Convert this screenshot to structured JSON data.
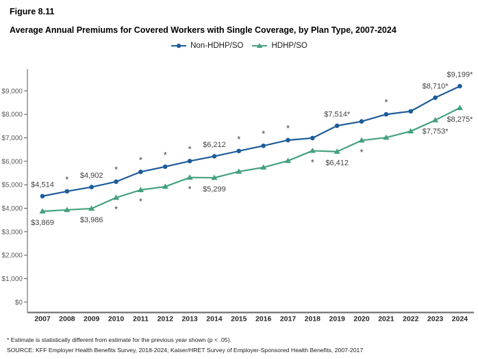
{
  "figure": {
    "number": "Figure 8.11",
    "title": "Average Annual Premiums for Covered Workers with Single Coverage, by Plan Type, 2007-2024"
  },
  "footnotes": {
    "asterisk_note": "* Estimate is statistically different from estimate for the previous year shown (p < .05).",
    "source": "SOURCE: KFF Employer Health Benefits Survey, 2018-2024; Kaiser/HRET Survey of Employer-Sponsored Health Benefits, 2007-2017"
  },
  "colors": {
    "non_hdhp": "#1d5c99",
    "hdhp": "#44a17d",
    "label_text": "#404040",
    "x_axis_line": "#7f7f7f",
    "y_axis_line": "#595959"
  },
  "chart_data": {
    "type": "line",
    "title": "Average Annual Premiums for Covered Workers with Single Coverage, by Plan Type, 2007-2024",
    "xlabel": "",
    "ylabel": "",
    "ylim": [
      0,
      9000
    ],
    "ytick_step": 1000,
    "grid": false,
    "legend_position": "top",
    "categories": [
      "2007",
      "2008",
      "2009",
      "2010",
      "2011",
      "2012",
      "2013",
      "2014",
      "2015",
      "2016",
      "2017",
      "2018",
      "2019",
      "2020",
      "2021",
      "2022",
      "2023",
      "2024"
    ],
    "yticks": [
      "$0",
      "$1,000",
      "$2,000",
      "$3,000",
      "$4,000",
      "$5,000",
      "$6,000",
      "$7,000",
      "$8,000",
      "$9,000"
    ],
    "series": [
      {
        "name": "Non-HDHP/SO",
        "color": "#1d5c99",
        "marker": "circle",
        "label_side": "above",
        "values": [
          4514,
          4720,
          4902,
          5130,
          5550,
          5770,
          6010,
          6212,
          6440,
          6660,
          6900,
          6990,
          7514,
          7700,
          8000,
          8130,
          8710,
          9199
        ],
        "point_labels": {
          "2007": "$4,514",
          "2009": "$4,902",
          "2014": "$6,212",
          "2019": "$7,514*",
          "2023": "$8,710*",
          "2024": "$9,199*"
        },
        "sig_years": [
          "2008",
          "2010",
          "2011",
          "2012",
          "2013",
          "2015",
          "2016",
          "2017",
          "2021"
        ]
      },
      {
        "name": "HDHP/SO",
        "color": "#44a17d",
        "marker": "triangle",
        "label_side": "below",
        "values": [
          3869,
          3930,
          3986,
          4450,
          4780,
          4920,
          5310,
          5299,
          5560,
          5740,
          6020,
          6450,
          6412,
          6890,
          7010,
          7280,
          7753,
          8275
        ],
        "point_labels": {
          "2007": "$3,869",
          "2009": "$3,986",
          "2014": "$5,299",
          "2019": "$6,412",
          "2023": "$7,753*",
          "2024": "$8,275*"
        },
        "sig_years": [
          "2010",
          "2011",
          "2013",
          "2018",
          "2020"
        ]
      }
    ]
  }
}
